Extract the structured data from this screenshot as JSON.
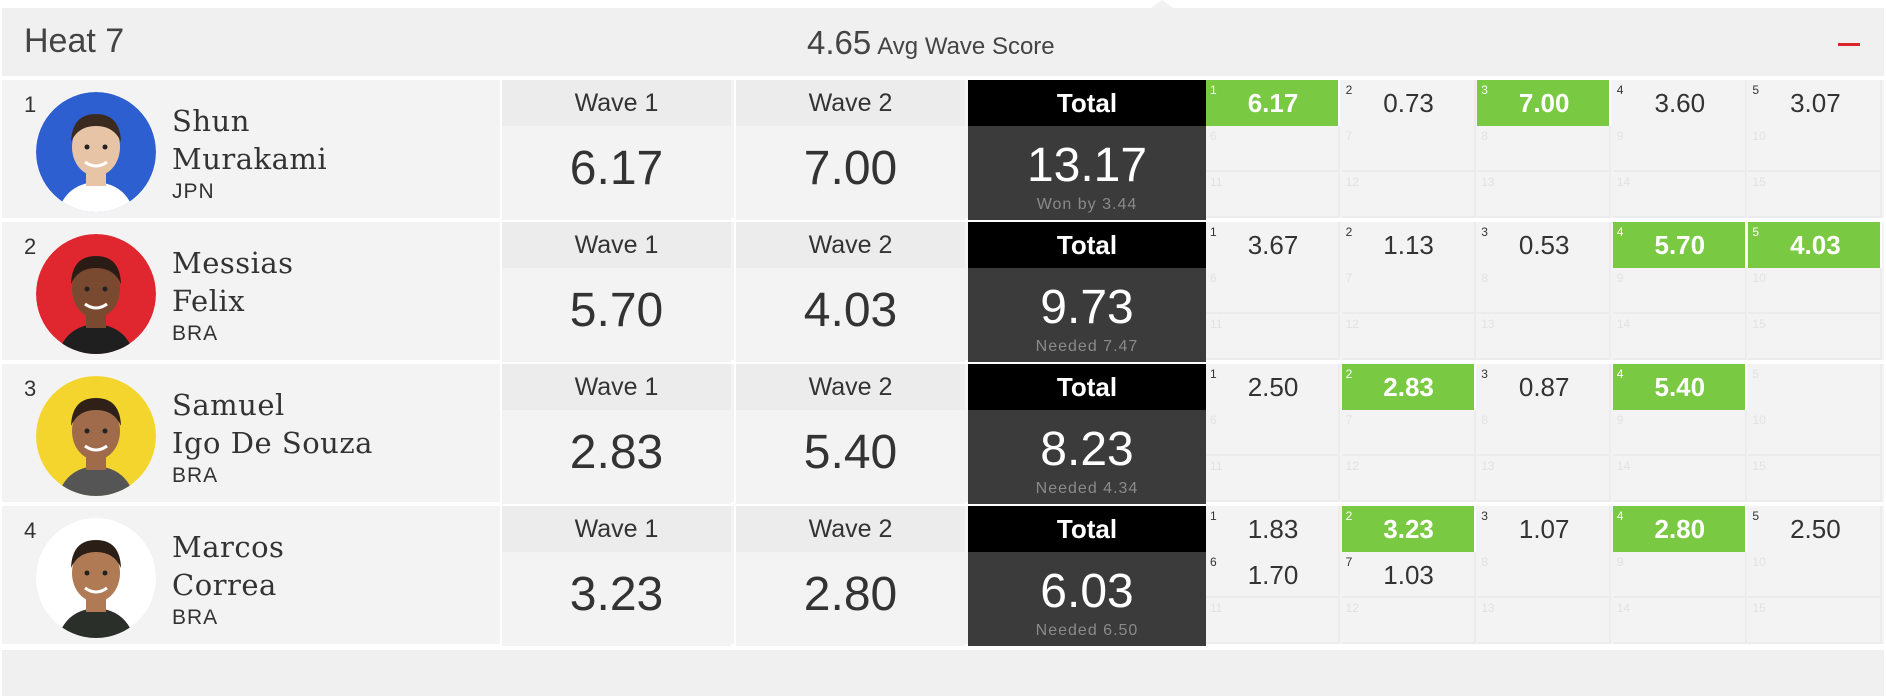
{
  "heat": {
    "title": "Heat 7",
    "avg_value": "4.65",
    "avg_label": "Avg Wave Score"
  },
  "labels": {
    "wave1": "Wave 1",
    "wave2": "Wave 2",
    "total": "Total"
  },
  "colors": {
    "highlight": "#7ac943",
    "collapse": "#d9262b",
    "total_head": "#000000",
    "total_body": "#3b3b3b"
  },
  "athletes": [
    {
      "place": "1",
      "first": "Shun",
      "last": "Murakami",
      "country": "JPN",
      "avatar_bg": "#2d5fd0",
      "wave1": "6.17",
      "wave2": "7.00",
      "total": "13.17",
      "note": "Won by 3.44",
      "waves": [
        {
          "n": "1",
          "v": "6.17",
          "hi": true
        },
        {
          "n": "2",
          "v": "0.73",
          "hi": false
        },
        {
          "n": "3",
          "v": "7.00",
          "hi": true
        },
        {
          "n": "4",
          "v": "3.60",
          "hi": false
        },
        {
          "n": "5",
          "v": "3.07",
          "hi": false
        },
        {
          "n": "6",
          "v": "",
          "hi": false
        },
        {
          "n": "7",
          "v": "",
          "hi": false
        },
        {
          "n": "8",
          "v": "",
          "hi": false
        },
        {
          "n": "9",
          "v": "",
          "hi": false
        },
        {
          "n": "10",
          "v": "",
          "hi": false
        },
        {
          "n": "11",
          "v": "",
          "hi": false
        },
        {
          "n": "12",
          "v": "",
          "hi": false
        },
        {
          "n": "13",
          "v": "",
          "hi": false
        },
        {
          "n": "14",
          "v": "",
          "hi": false
        },
        {
          "n": "15",
          "v": "",
          "hi": false
        }
      ]
    },
    {
      "place": "2",
      "first": "Messias",
      "last": "Felix",
      "country": "BRA",
      "avatar_bg": "#e0262f",
      "wave1": "5.70",
      "wave2": "4.03",
      "total": "9.73",
      "note": "Needed 7.47",
      "waves": [
        {
          "n": "1",
          "v": "3.67",
          "hi": false
        },
        {
          "n": "2",
          "v": "1.13",
          "hi": false
        },
        {
          "n": "3",
          "v": "0.53",
          "hi": false
        },
        {
          "n": "4",
          "v": "5.70",
          "hi": true
        },
        {
          "n": "5",
          "v": "4.03",
          "hi": true
        },
        {
          "n": "6",
          "v": "",
          "hi": false
        },
        {
          "n": "7",
          "v": "",
          "hi": false
        },
        {
          "n": "8",
          "v": "",
          "hi": false
        },
        {
          "n": "9",
          "v": "",
          "hi": false
        },
        {
          "n": "10",
          "v": "",
          "hi": false
        },
        {
          "n": "11",
          "v": "",
          "hi": false
        },
        {
          "n": "12",
          "v": "",
          "hi": false
        },
        {
          "n": "13",
          "v": "",
          "hi": false
        },
        {
          "n": "14",
          "v": "",
          "hi": false
        },
        {
          "n": "15",
          "v": "",
          "hi": false
        }
      ]
    },
    {
      "place": "3",
      "first": "Samuel",
      "last": "Igo De Souza",
      "country": "BRA",
      "avatar_bg": "#f3d52e",
      "wave1": "2.83",
      "wave2": "5.40",
      "total": "8.23",
      "note": "Needed 4.34",
      "waves": [
        {
          "n": "1",
          "v": "2.50",
          "hi": false
        },
        {
          "n": "2",
          "v": "2.83",
          "hi": true
        },
        {
          "n": "3",
          "v": "0.87",
          "hi": false
        },
        {
          "n": "4",
          "v": "5.40",
          "hi": true
        },
        {
          "n": "5",
          "v": "",
          "hi": false
        },
        {
          "n": "6",
          "v": "",
          "hi": false
        },
        {
          "n": "7",
          "v": "",
          "hi": false
        },
        {
          "n": "8",
          "v": "",
          "hi": false
        },
        {
          "n": "9",
          "v": "",
          "hi": false
        },
        {
          "n": "10",
          "v": "",
          "hi": false
        },
        {
          "n": "11",
          "v": "",
          "hi": false
        },
        {
          "n": "12",
          "v": "",
          "hi": false
        },
        {
          "n": "13",
          "v": "",
          "hi": false
        },
        {
          "n": "14",
          "v": "",
          "hi": false
        },
        {
          "n": "15",
          "v": "",
          "hi": false
        }
      ]
    },
    {
      "place": "4",
      "first": "Marcos",
      "last": "Correa",
      "country": "BRA",
      "avatar_bg": "#ffffff",
      "wave1": "3.23",
      "wave2": "2.80",
      "total": "6.03",
      "note": "Needed 6.50",
      "waves": [
        {
          "n": "1",
          "v": "1.83",
          "hi": false
        },
        {
          "n": "2",
          "v": "3.23",
          "hi": true
        },
        {
          "n": "3",
          "v": "1.07",
          "hi": false
        },
        {
          "n": "4",
          "v": "2.80",
          "hi": true
        },
        {
          "n": "5",
          "v": "2.50",
          "hi": false
        },
        {
          "n": "6",
          "v": "1.70",
          "hi": false
        },
        {
          "n": "7",
          "v": "1.03",
          "hi": false
        },
        {
          "n": "8",
          "v": "",
          "hi": false
        },
        {
          "n": "9",
          "v": "",
          "hi": false
        },
        {
          "n": "10",
          "v": "",
          "hi": false
        },
        {
          "n": "11",
          "v": "",
          "hi": false
        },
        {
          "n": "12",
          "v": "",
          "hi": false
        },
        {
          "n": "13",
          "v": "",
          "hi": false
        },
        {
          "n": "14",
          "v": "",
          "hi": false
        },
        {
          "n": "15",
          "v": "",
          "hi": false
        }
      ]
    }
  ]
}
